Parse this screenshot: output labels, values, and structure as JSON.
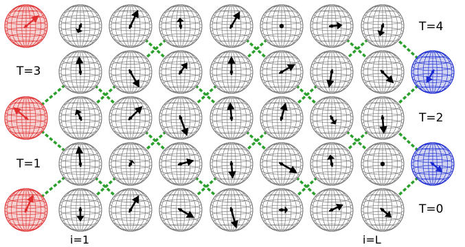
{
  "labels": {
    "t4": "T=4",
    "t3": "T=3",
    "t2": "T=2",
    "t1": "T=1",
    "t0": "T=0",
    "i_first": "i=1",
    "i_last": "i=L"
  },
  "colors": {
    "bond": "#2ca02c",
    "sphere_grid": "#777777",
    "spin_arrow": "#000000",
    "boundary_red": "#e03030",
    "boundary_red_fill": "#f4c9c9",
    "boundary_blue": "#1a2ad0",
    "boundary_blue_fill": "#c9cdf0"
  },
  "boundary_spins": [
    {
      "side": "left",
      "row": 0,
      "color": "red",
      "direction_deg": 40,
      "length": 0.8
    },
    {
      "side": "left",
      "row": 2,
      "color": "red",
      "direction_deg": 140,
      "length": 0.8
    },
    {
      "side": "left",
      "row": 4,
      "color": "red",
      "direction_deg": 65,
      "length": 0.8
    },
    {
      "side": "right",
      "row": 1,
      "color": "blue",
      "direction_deg": 240,
      "length": 0.6
    },
    {
      "side": "right",
      "row": 3,
      "color": "blue",
      "direction_deg": 320,
      "length": 0.6
    }
  ],
  "spins": [
    [
      {
        "a": 250,
        "l": 0.35
      },
      {
        "a": 65,
        "l": 0.85
      },
      {
        "a": 95,
        "l": 0.4
      },
      {
        "a": 60,
        "l": 0.8
      },
      {
        "a": 0,
        "l": 0.05
      },
      {
        "a": 5,
        "l": 0.5
      },
      {
        "a": 255,
        "l": 0.5
      }
    ],
    [
      {
        "a": 95,
        "l": 0.75
      },
      {
        "a": 300,
        "l": 0.85
      },
      {
        "a": 55,
        "l": 0.55
      },
      {
        "a": 90,
        "l": 0.75
      },
      {
        "a": 30,
        "l": 0.75
      },
      {
        "a": 260,
        "l": 0.75
      },
      {
        "a": 315,
        "l": 0.75
      }
    ],
    [
      {
        "a": 115,
        "l": 0.45
      },
      {
        "a": 45,
        "l": 0.8
      },
      {
        "a": 290,
        "l": 0.9
      },
      {
        "a": 95,
        "l": 0.75
      },
      {
        "a": 75,
        "l": 0.75
      },
      {
        "a": 300,
        "l": 0.35
      },
      {
        "a": 275,
        "l": 0.75
      }
    ],
    [
      {
        "a": 95,
        "l": 0.85
      },
      {
        "a": 60,
        "l": 0.2
      },
      {
        "a": 15,
        "l": 0.65
      },
      {
        "a": 275,
        "l": 0.7
      },
      {
        "a": 330,
        "l": 0.85
      },
      {
        "a": 100,
        "l": 0.45
      },
      {
        "a": 0,
        "l": 0.05
      }
    ],
    [
      {
        "a": 270,
        "l": 0.55
      },
      {
        "a": 60,
        "l": 0.8
      },
      {
        "a": 330,
        "l": 0.75
      },
      {
        "a": 285,
        "l": 0.9
      },
      {
        "a": 0,
        "l": 0.3
      },
      {
        "a": 25,
        "l": 0.6
      },
      {
        "a": 320,
        "l": 0.55
      }
    ]
  ]
}
